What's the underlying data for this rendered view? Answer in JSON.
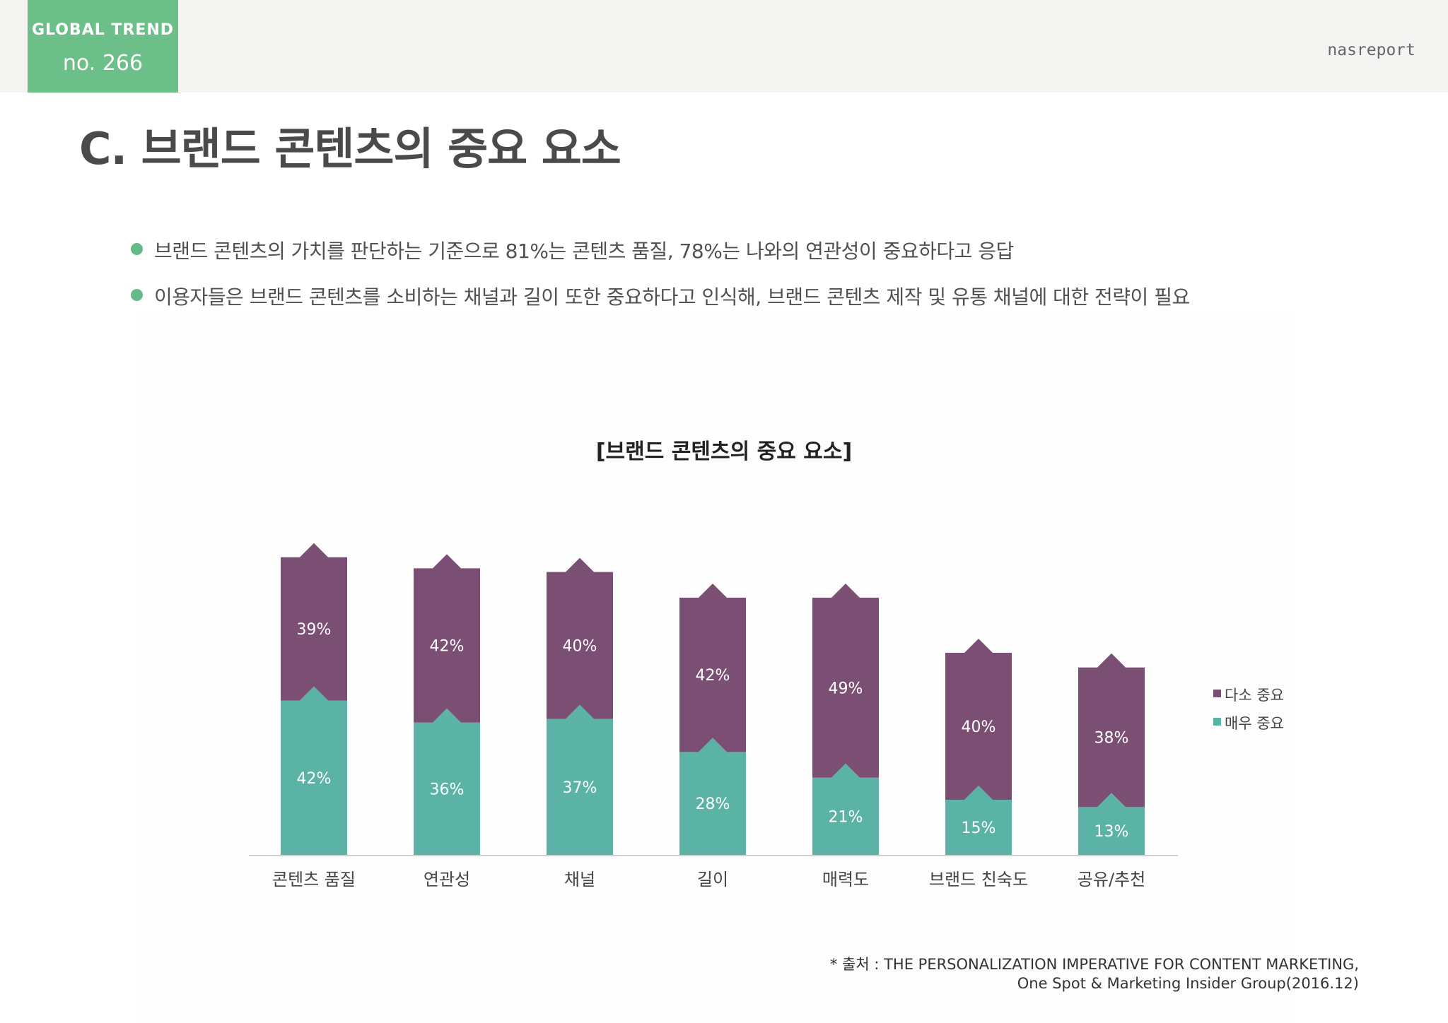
{
  "header": {
    "badge_label": "GLOBAL TREND",
    "badge_number": "no. 266",
    "brand": "nasreport"
  },
  "page_title": "C. 브랜드 콘텐츠의 중요 요소",
  "bullets": [
    "브랜드 콘텐츠의 가치를 판단하는 기준으로 81%는 콘텐츠 품질, 78%는 나와의 연관성이 중요하다고 응답",
    "이용자들은 브랜드 콘텐츠를 소비하는 채널과 길이 또한 중요하다고 인식해, 브랜드 콘텐츠 제작 및 유통 채널에 대한 전략이 필요"
  ],
  "chart_data": {
    "type": "bar",
    "stacked": true,
    "title": "[브랜드 콘텐츠의 중요 요소]",
    "categories": [
      "콘텐츠 품질",
      "연관성",
      "채널",
      "길이",
      "매력도",
      "브랜드 친숙도",
      "공유/추천"
    ],
    "series": [
      {
        "name": "매우 중요",
        "color": "#5bb3a6",
        "values": [
          42,
          36,
          37,
          28,
          21,
          15,
          13
        ],
        "labels": [
          "42%",
          "36%",
          "37%",
          "28%",
          "21%",
          "15%",
          "13%"
        ]
      },
      {
        "name": "다소 중요",
        "color": "#7b4f74",
        "values": [
          39,
          42,
          40,
          42,
          49,
          40,
          38
        ],
        "labels": [
          "39%",
          "42%",
          "40%",
          "42%",
          "49%",
          "40%",
          "38%"
        ]
      }
    ],
    "legend": {
      "position": "right",
      "entries": [
        {
          "name": "다소 중요",
          "color": "#7b4f74"
        },
        {
          "name": "매우 중요",
          "color": "#5bb3a6"
        }
      ]
    },
    "ylim": [
      0,
      85
    ],
    "grid": false
  },
  "source": {
    "line1": "* 출처 : THE PERSONALIZATION IMPERATIVE FOR CONTENT MARKETING,",
    "line2": "One Spot & Marketing Insider Group(2016.12)"
  }
}
